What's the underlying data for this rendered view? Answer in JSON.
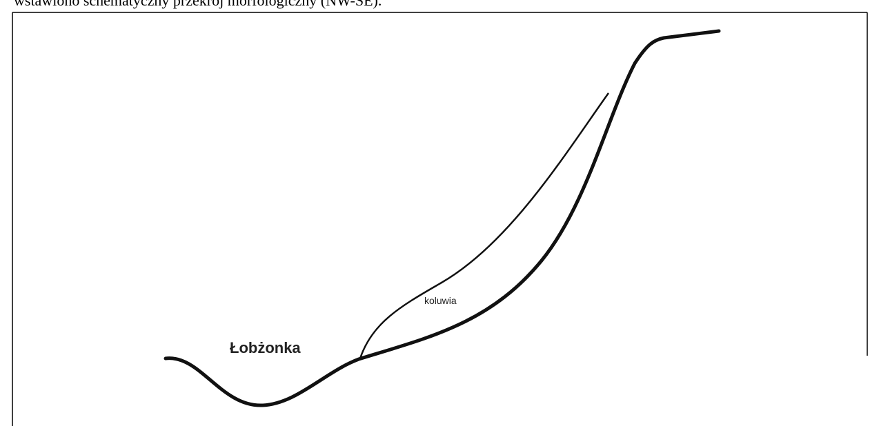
{
  "caption": "wstawiono schematyczny przekrój morfologiczny (NW-SE).",
  "labels": {
    "river": "Łobżonka",
    "colluvium": "koluwia"
  }
}
